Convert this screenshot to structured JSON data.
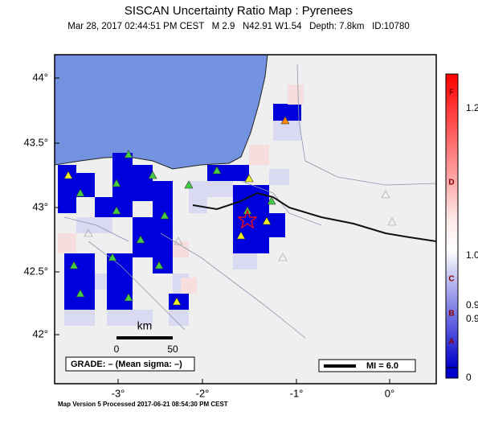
{
  "header": {
    "title": "SISCAN Uncertainty Ratio Map : Pyrenees",
    "subtitle": "Mar 28, 2017 02:44:51 PM CEST   M 2.9   N42.91 W1.54   Depth: 7.8km   ID:10780"
  },
  "axes": {
    "lat_labels": [
      "44°",
      "43.5°",
      "43°",
      "42.5°",
      "42°"
    ],
    "lon_labels": [
      "-3°",
      "-2°",
      "-1°",
      "0°"
    ]
  },
  "scale_bar": {
    "unit": "km",
    "labels": [
      "0",
      "50"
    ]
  },
  "grade": "GRADE: – (Mean sigma: –)",
  "legend": "MI = 6.0",
  "colorbar": {
    "grades": [
      "F",
      "D",
      "C",
      "B",
      "A"
    ],
    "ticks": [
      "1.2",
      "1.0",
      "0.9",
      "0.9",
      "0"
    ]
  },
  "footer": "Map Version 5 Processed 2017-06-21 08:54:30 PM CEST"
}
